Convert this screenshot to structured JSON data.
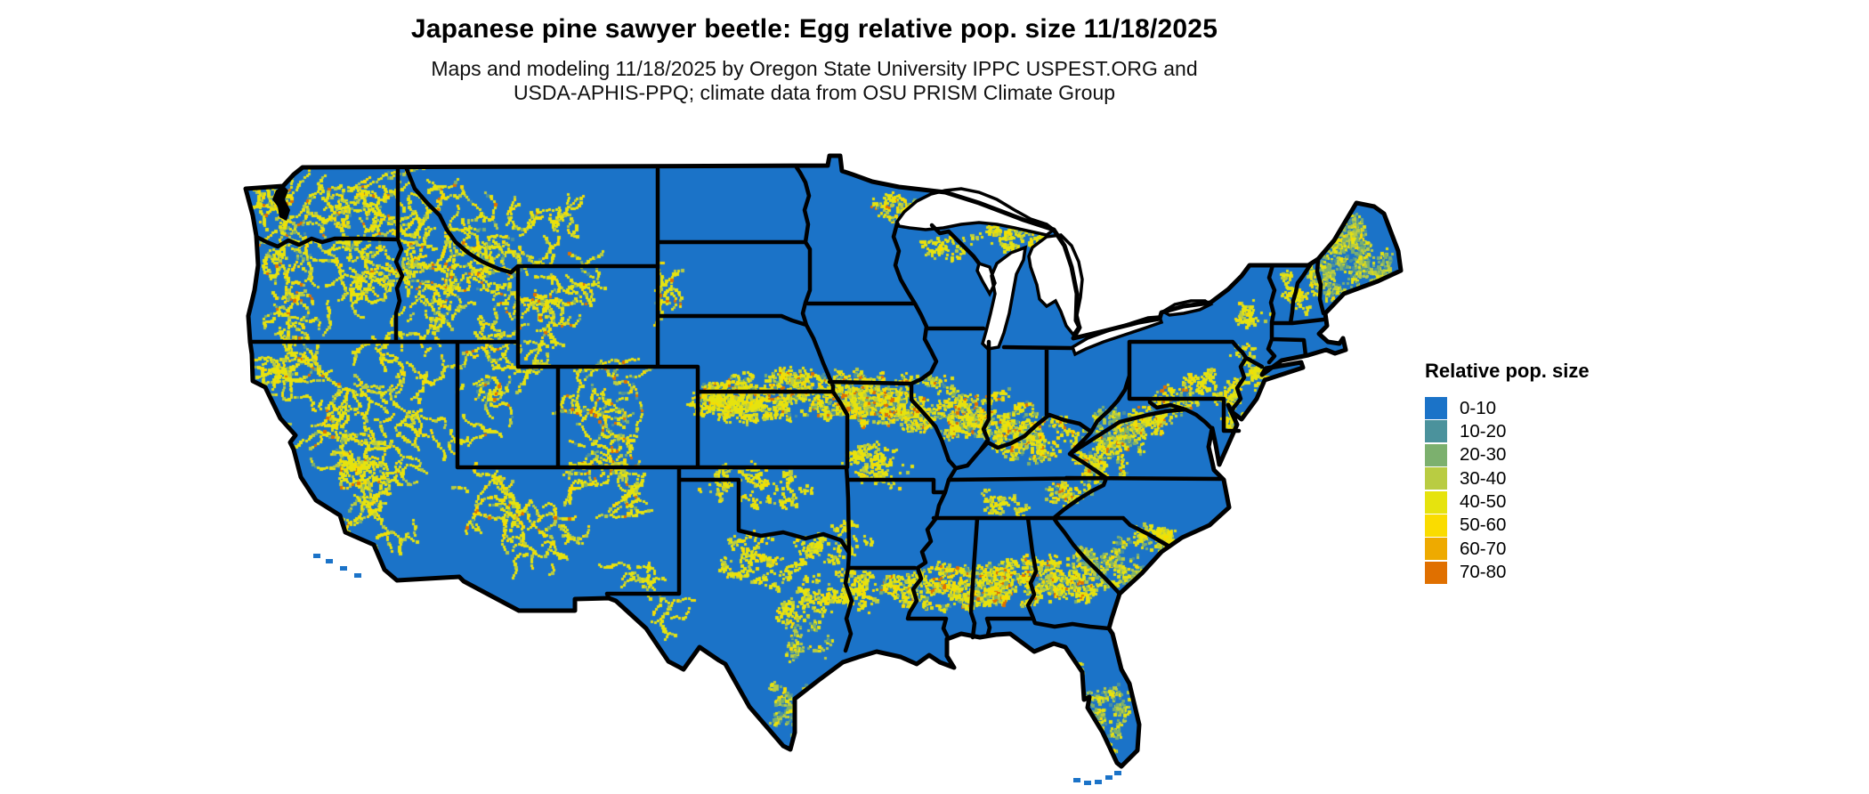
{
  "title": "Japanese pine sawyer beetle: Egg relative pop. size 11/18/2025",
  "subtitle": {
    "line1": "Maps and modeling 11/18/2025 by Oregon State University IPPC USPEST.ORG and",
    "line2": "USDA-APHIS-PPQ; climate data from OSU PRISM Climate Group"
  },
  "legend": {
    "title": "Relative pop. size",
    "items": [
      {
        "label": "0-10",
        "color": "#1b73c8"
      },
      {
        "label": "10-20",
        "color": "#4b929c"
      },
      {
        "label": "20-30",
        "color": "#7cb06e"
      },
      {
        "label": "30-40",
        "color": "#b9cc42"
      },
      {
        "label": "40-50",
        "color": "#e6e30e"
      },
      {
        "label": "50-60",
        "color": "#fadc00"
      },
      {
        "label": "60-70",
        "color": "#eeaa00"
      },
      {
        "label": "70-80",
        "color": "#e07000"
      }
    ]
  },
  "map": {
    "land_color": "#1b73c8",
    "water_color": "#ffffff",
    "border_color": "#000000"
  }
}
